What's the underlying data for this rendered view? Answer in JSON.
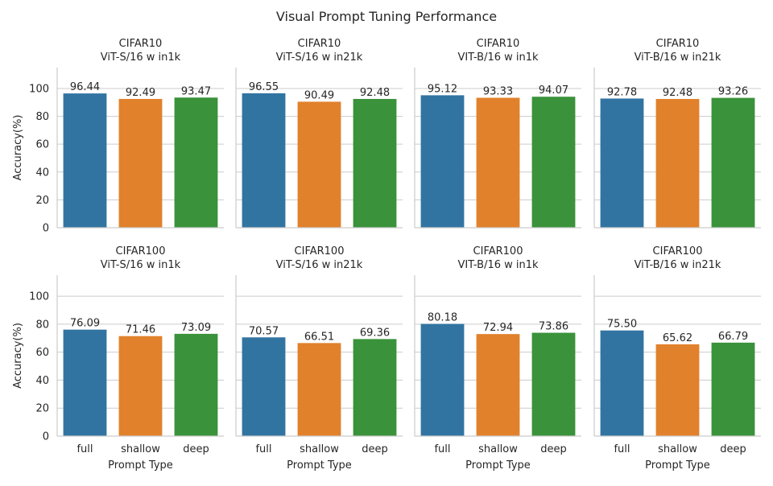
{
  "title": "Visual Prompt Tuning Performance",
  "colors": {
    "full": "#3274a1",
    "shallow": "#e1812c",
    "deep": "#3a923a",
    "grid": "#cccccc",
    "axis": "#cccccc"
  },
  "chart_data": {
    "type": "bar",
    "title": "Visual Prompt Tuning Performance",
    "xlabel": "Prompt Type",
    "ylabel": "Accuracy(%)",
    "categories": [
      "full",
      "shallow",
      "deep"
    ],
    "ylim": [
      0,
      115
    ],
    "yticks": [
      "0",
      "20",
      "40",
      "60",
      "80",
      "100"
    ],
    "grid": true,
    "panels": [
      {
        "dataset": "CIFAR10",
        "model": "ViT-S/16 w in1k",
        "values": [
          96.44,
          92.49,
          93.47
        ],
        "labels": [
          "96.44",
          "92.49",
          "93.47"
        ]
      },
      {
        "dataset": "CIFAR10",
        "model": "ViT-S/16 w in21k",
        "values": [
          96.55,
          90.49,
          92.48
        ],
        "labels": [
          "96.55",
          "90.49",
          "92.48"
        ]
      },
      {
        "dataset": "CIFAR10",
        "model": "VIT-B/16 w in1k",
        "values": [
          95.12,
          93.33,
          94.07
        ],
        "labels": [
          "95.12",
          "93.33",
          "94.07"
        ]
      },
      {
        "dataset": "CIFAR10",
        "model": "ViT-B/16 w in21k",
        "values": [
          92.78,
          92.48,
          93.26
        ],
        "labels": [
          "92.78",
          "92.48",
          "93.26"
        ]
      },
      {
        "dataset": "CIFAR100",
        "model": "ViT-S/16 w in1k",
        "values": [
          76.09,
          71.46,
          73.09
        ],
        "labels": [
          "76.09",
          "71.46",
          "73.09"
        ]
      },
      {
        "dataset": "CIFAR100",
        "model": "ViT-S/16 w in21k",
        "values": [
          70.57,
          66.51,
          69.36
        ],
        "labels": [
          "70.57",
          "66.51",
          "69.36"
        ]
      },
      {
        "dataset": "CIFAR100",
        "model": "VIT-B/16 w in1k",
        "values": [
          80.18,
          72.94,
          73.86
        ],
        "labels": [
          "80.18",
          "72.94",
          "73.86"
        ]
      },
      {
        "dataset": "CIFAR100",
        "model": "ViT-B/16 w in21k",
        "values": [
          75.5,
          65.62,
          66.79
        ],
        "labels": [
          "75.50",
          "65.62",
          "66.79"
        ]
      }
    ]
  }
}
